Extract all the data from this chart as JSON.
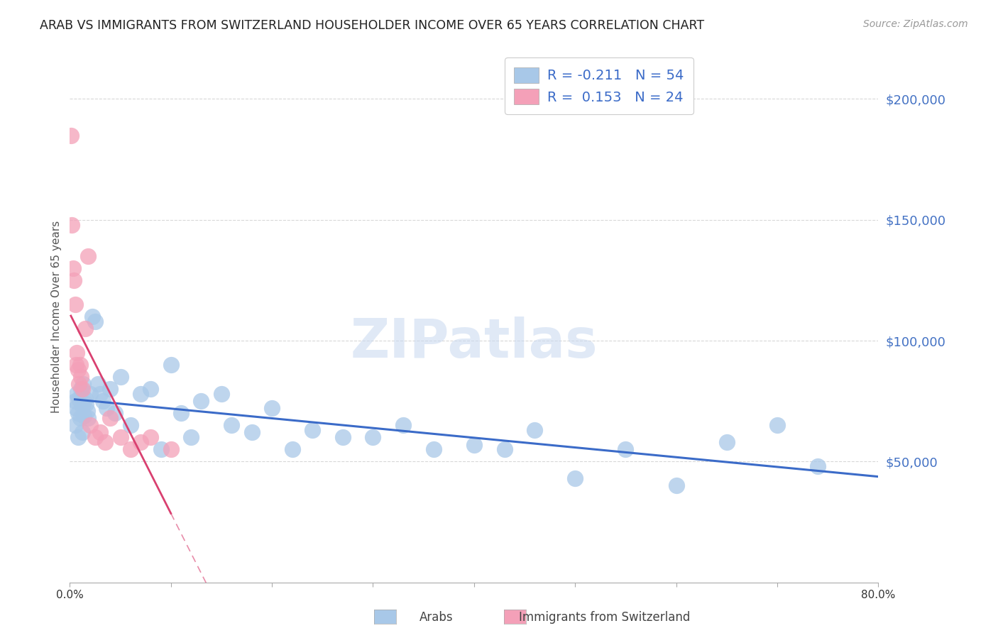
{
  "title": "ARAB VS IMMIGRANTS FROM SWITZERLAND HOUSEHOLDER INCOME OVER 65 YEARS CORRELATION CHART",
  "source": "Source: ZipAtlas.com",
  "ylabel": "Householder Income Over 65 years",
  "xlim": [
    0.0,
    0.8
  ],
  "ylim": [
    0,
    220000
  ],
  "yticks": [
    50000,
    100000,
    150000,
    200000
  ],
  "ytick_labels": [
    "$50,000",
    "$100,000",
    "$150,000",
    "$200,000"
  ],
  "xtick_positions": [
    0.0,
    0.1,
    0.2,
    0.3,
    0.4,
    0.5,
    0.6,
    0.7,
    0.8
  ],
  "xtick_labels_shown": [
    "0.0%",
    "",
    "",
    "",
    "",
    "",
    "",
    "",
    "80.0%"
  ],
  "arab_color": "#A8C8E8",
  "swiss_color": "#F4A0B8",
  "trend_arab_color": "#3B6BC8",
  "trend_swiss_color": "#D94070",
  "watermark_color": "#C8D8F0",
  "grid_color": "#D8D8D8",
  "ytick_color": "#4472C4",
  "legend_arab_R": "-0.211",
  "legend_arab_N": "54",
  "legend_swiss_R": "0.153",
  "legend_swiss_N": "24",
  "arab_x": [
    0.005,
    0.006,
    0.007,
    0.008,
    0.009,
    0.01,
    0.011,
    0.012,
    0.013,
    0.014,
    0.015,
    0.016,
    0.017,
    0.018,
    0.02,
    0.022,
    0.025,
    0.028,
    0.03,
    0.033,
    0.036,
    0.04,
    0.045,
    0.05,
    0.06,
    0.07,
    0.08,
    0.09,
    0.1,
    0.11,
    0.12,
    0.13,
    0.15,
    0.16,
    0.18,
    0.2,
    0.22,
    0.24,
    0.27,
    0.3,
    0.33,
    0.36,
    0.4,
    0.43,
    0.46,
    0.5,
    0.55,
    0.6,
    0.65,
    0.7,
    0.74,
    0.005,
    0.008,
    0.012
  ],
  "arab_y": [
    75000,
    72000,
    78000,
    70000,
    76000,
    68000,
    80000,
    73000,
    82000,
    69000,
    76000,
    74000,
    71000,
    68000,
    78000,
    110000,
    108000,
    82000,
    78000,
    75000,
    72000,
    80000,
    70000,
    85000,
    65000,
    78000,
    80000,
    55000,
    90000,
    70000,
    60000,
    75000,
    78000,
    65000,
    62000,
    72000,
    55000,
    63000,
    60000,
    60000,
    65000,
    55000,
    57000,
    55000,
    63000,
    43000,
    55000,
    40000,
    58000,
    65000,
    48000,
    65000,
    60000,
    62000
  ],
  "swiss_x": [
    0.001,
    0.002,
    0.003,
    0.004,
    0.005,
    0.006,
    0.007,
    0.008,
    0.009,
    0.01,
    0.011,
    0.012,
    0.015,
    0.018,
    0.02,
    0.025,
    0.03,
    0.035,
    0.04,
    0.05,
    0.06,
    0.07,
    0.08,
    0.1
  ],
  "swiss_y": [
    185000,
    148000,
    130000,
    125000,
    115000,
    90000,
    95000,
    88000,
    82000,
    90000,
    85000,
    80000,
    105000,
    135000,
    65000,
    60000,
    62000,
    58000,
    68000,
    60000,
    55000,
    58000,
    60000,
    55000
  ]
}
